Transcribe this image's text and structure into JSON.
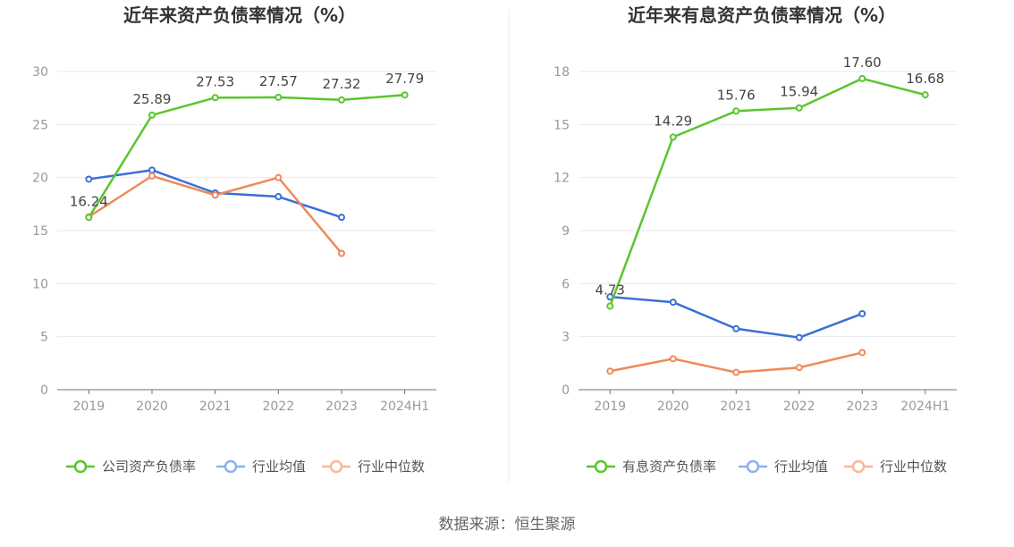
{
  "chart_data": [
    {
      "type": "line",
      "title": "近年来资产负债率情况（%）",
      "categories": [
        "2019",
        "2020",
        "2021",
        "2022",
        "2023",
        "2024H1"
      ],
      "ylim": [
        0,
        30
      ],
      "yticks": [
        0,
        5,
        10,
        15,
        20,
        25,
        30
      ],
      "grid": true,
      "legend_position": "bottom",
      "series": [
        {
          "name": "公司资产负债率",
          "color": "#5ac52e",
          "values": [
            16.24,
            25.89,
            27.53,
            27.57,
            27.32,
            27.79
          ],
          "labels": [
            "16.24",
            "25.89",
            "27.53",
            "27.57",
            "27.32",
            "27.79"
          ]
        },
        {
          "name": "行业均值",
          "color": "#3a6fd8",
          "values": [
            19.85,
            20.7,
            18.55,
            18.2,
            16.25,
            null
          ]
        },
        {
          "name": "行业中位数",
          "color": "#ef8a5a",
          "values": [
            16.3,
            20.15,
            18.35,
            20.0,
            12.85,
            null
          ]
        }
      ],
      "legend_colors": [
        "#5ac52e",
        "#8fb0ee",
        "#f7b89b"
      ]
    },
    {
      "type": "line",
      "title": "近年来有息资产负债率情况（%）",
      "categories": [
        "2019",
        "2020",
        "2021",
        "2022",
        "2023",
        "2024H1"
      ],
      "ylim": [
        0,
        18
      ],
      "yticks": [
        0,
        3,
        6,
        9,
        12,
        15,
        18
      ],
      "grid": true,
      "legend_position": "bottom",
      "series": [
        {
          "name": "有息资产负债率",
          "color": "#5ac52e",
          "values": [
            4.73,
            14.29,
            15.76,
            15.94,
            17.6,
            16.68
          ],
          "labels": [
            "4.73",
            "14.29",
            "15.76",
            "15.94",
            "17.60",
            "16.68"
          ]
        },
        {
          "name": "行业均值",
          "color": "#3a6fd8",
          "values": [
            5.25,
            4.95,
            3.45,
            2.95,
            4.3,
            null
          ]
        },
        {
          "name": "行业中位数",
          "color": "#ef8a5a",
          "values": [
            1.05,
            1.75,
            0.98,
            1.25,
            2.1,
            null
          ]
        }
      ],
      "legend_colors": [
        "#5ac52e",
        "#8fb0ee",
        "#f7b89b"
      ]
    }
  ],
  "footer": {
    "source": "数据来源：恒生聚源"
  }
}
